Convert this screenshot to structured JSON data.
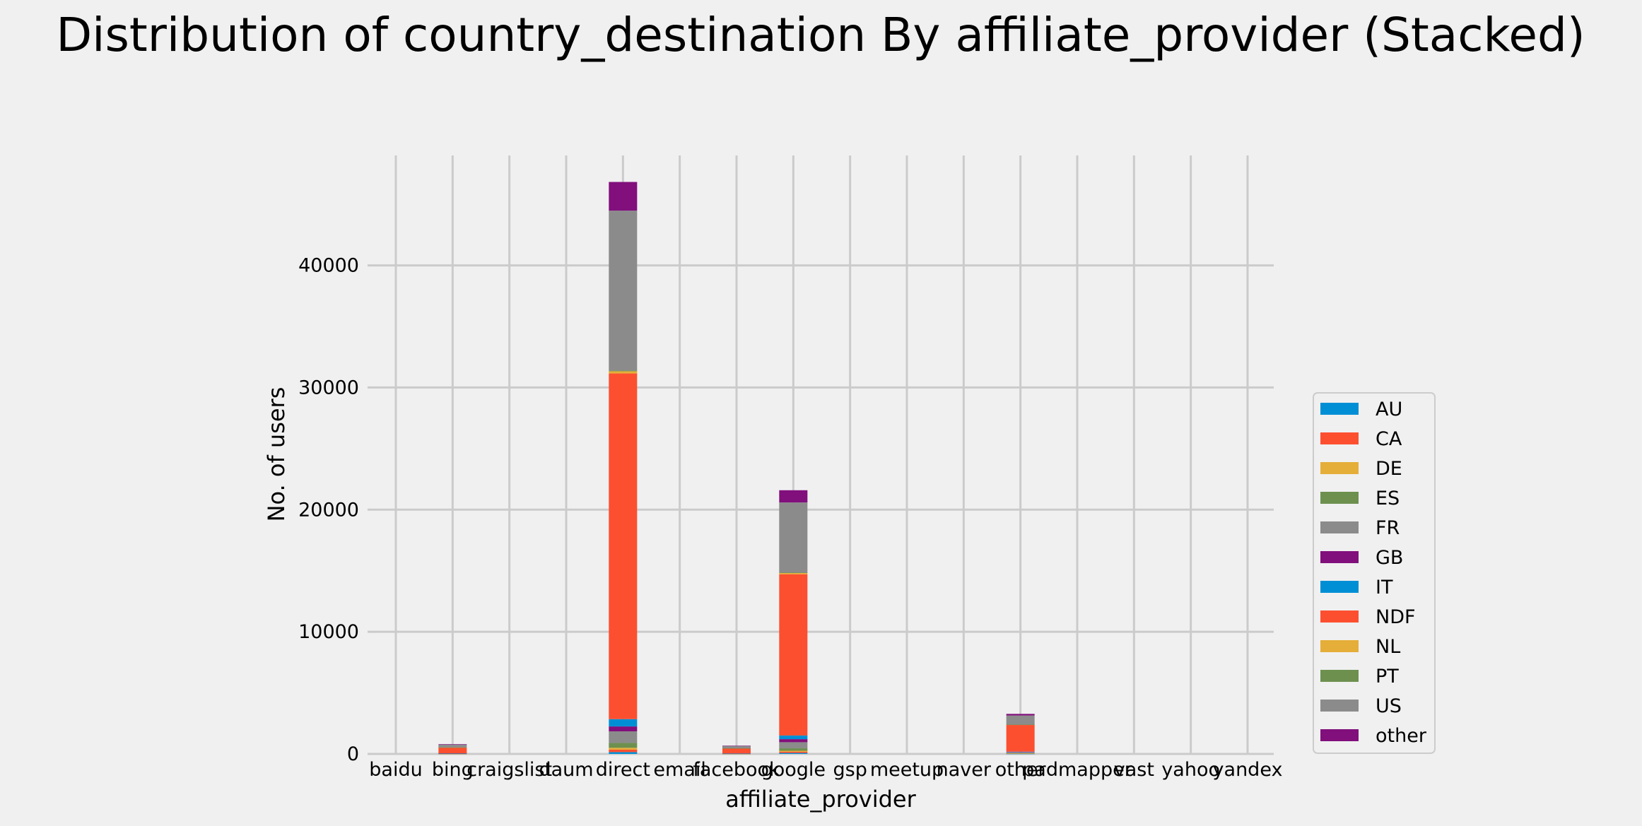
{
  "chart_data": {
    "type": "bar",
    "stacked": true,
    "title": "Distribution of country_destination By affiliate_provider (Stacked)",
    "xlabel": "affiliate_provider",
    "ylabel": "No. of users",
    "ylim": [
      0,
      49000
    ],
    "yticks": [
      0,
      10000,
      20000,
      30000,
      40000
    ],
    "ytick_labels": [
      "0",
      "10000",
      "20000",
      "30000",
      "40000"
    ],
    "grid": true,
    "legend_position": "center-right",
    "categories": [
      "baidu",
      "bing",
      "craigslist",
      "daum",
      "direct",
      "email",
      "facebook",
      "google",
      "gsp",
      "meetup",
      "naver",
      "other",
      "padmapper",
      "vast",
      "yahoo",
      "yandex"
    ],
    "series": [
      {
        "name": "AU",
        "color": "#008fd5",
        "values": [
          0,
          2,
          0,
          0,
          150,
          0,
          2,
          80,
          0,
          0,
          0,
          10,
          0,
          0,
          0,
          0
        ]
      },
      {
        "name": "CA",
        "color": "#fc4f30",
        "values": [
          0,
          5,
          0,
          0,
          200,
          0,
          4,
          100,
          0,
          0,
          0,
          15,
          0,
          0,
          0,
          0
        ]
      },
      {
        "name": "DE",
        "color": "#e5ae38",
        "values": [
          0,
          3,
          0,
          0,
          150,
          0,
          3,
          80,
          0,
          0,
          0,
          10,
          0,
          0,
          0,
          0
        ]
      },
      {
        "name": "ES",
        "color": "#6d904f",
        "values": [
          0,
          8,
          0,
          0,
          400,
          0,
          6,
          200,
          0,
          0,
          0,
          30,
          0,
          0,
          0,
          0
        ]
      },
      {
        "name": "FR",
        "color": "#8b8b8b",
        "values": [
          0,
          15,
          0,
          0,
          950,
          0,
          12,
          500,
          0,
          0,
          0,
          60,
          0,
          0,
          0,
          0
        ]
      },
      {
        "name": "GB",
        "color": "#810f7c",
        "values": [
          0,
          8,
          0,
          0,
          400,
          0,
          6,
          250,
          0,
          0,
          0,
          30,
          0,
          0,
          0,
          0
        ]
      },
      {
        "name": "IT",
        "color": "#008fd5",
        "values": [
          0,
          8,
          0,
          0,
          600,
          0,
          7,
          300,
          0,
          0,
          0,
          30,
          0,
          0,
          0,
          0
        ]
      },
      {
        "name": "NDF",
        "color": "#fc4f30",
        "values": [
          0,
          480,
          0,
          0,
          28300,
          0,
          420,
          13200,
          0,
          0,
          0,
          2200,
          0,
          0,
          0,
          0
        ]
      },
      {
        "name": "NL",
        "color": "#e5ae38",
        "values": [
          0,
          3,
          0,
          0,
          180,
          0,
          3,
          100,
          0,
          0,
          0,
          10,
          0,
          0,
          0,
          0
        ]
      },
      {
        "name": "PT",
        "color": "#6d904f",
        "values": [
          0,
          1,
          0,
          0,
          50,
          0,
          1,
          30,
          0,
          0,
          0,
          3,
          0,
          0,
          0,
          0
        ]
      },
      {
        "name": "US",
        "color": "#8b8b8b",
        "values": [
          0,
          230,
          0,
          0,
          13100,
          0,
          190,
          5750,
          0,
          0,
          0,
          750,
          0,
          0,
          0,
          0
        ]
      },
      {
        "name": "other",
        "color": "#810f7c",
        "values": [
          0,
          40,
          0,
          0,
          2350,
          0,
          30,
          1000,
          0,
          0,
          0,
          130,
          0,
          0,
          0,
          0
        ]
      }
    ]
  }
}
